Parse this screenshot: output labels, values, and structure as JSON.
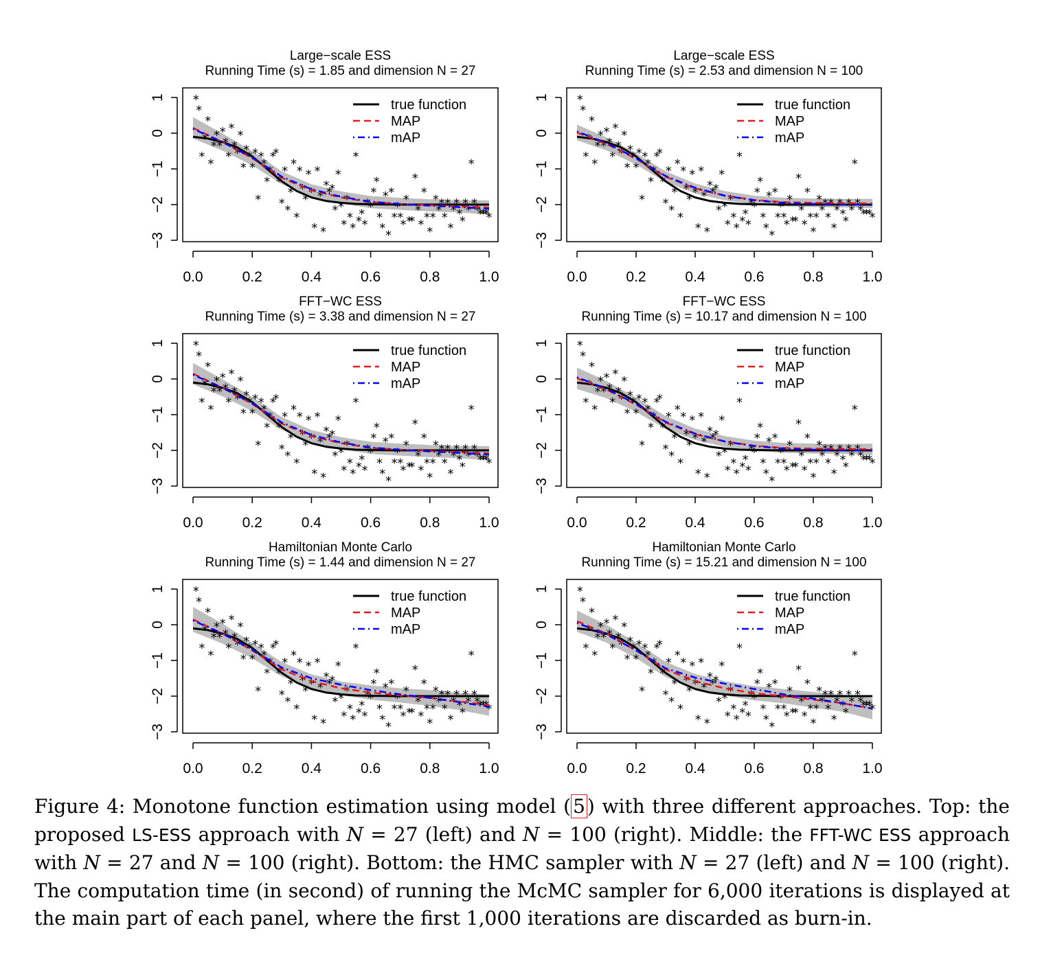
{
  "legend": {
    "true_function": "true function",
    "map": "MAP",
    "mAP": "mAP"
  },
  "colors": {
    "true_function": "#000000",
    "map": "#e41a1c",
    "mAP": "#0000ff",
    "band": "#bebebe"
  },
  "chart_data": [
    {
      "type": "line",
      "title_line1": "Large−scale ESS",
      "title_line2": "Running Time (s) =  1.85 and dimension N = 27",
      "xlim": [
        0,
        1
      ],
      "ylim": [
        -3,
        1
      ],
      "x_ticks": [
        "0.0",
        "0.2",
        "0.4",
        "0.6",
        "0.8",
        "1.0"
      ],
      "y_ticks": [
        "−3",
        "−2",
        "−1",
        "0",
        "1"
      ],
      "map_curve": {
        "x": [
          0,
          0.1,
          0.2,
          0.3,
          0.4,
          0.5,
          0.6,
          0.7,
          0.8,
          0.9,
          1.0
        ],
        "y": [
          0.15,
          -0.25,
          -0.7,
          -1.25,
          -1.6,
          -1.8,
          -1.93,
          -1.98,
          -2.02,
          -2.05,
          -2.08
        ]
      },
      "mAP_curve": {
        "x": [
          0,
          0.1,
          0.2,
          0.3,
          0.4,
          0.5,
          0.6,
          0.7,
          0.8,
          0.9,
          1.0
        ],
        "y": [
          0.12,
          -0.25,
          -0.68,
          -1.22,
          -1.57,
          -1.78,
          -1.92,
          -1.98,
          -2.03,
          -2.07,
          -2.12
        ]
      },
      "band_halfwidth": [
        0.3,
        0.24,
        0.2,
        0.18,
        0.17,
        0.17,
        0.17,
        0.17,
        0.17,
        0.17,
        0.2
      ]
    },
    {
      "type": "line",
      "title_line1": "Large−scale ESS",
      "title_line2": "Running Time (s) =  2.53 and dimension N = 100",
      "xlim": [
        0,
        1
      ],
      "ylim": [
        -3,
        1
      ],
      "x_ticks": [
        "0.0",
        "0.2",
        "0.4",
        "0.6",
        "0.8",
        "1.0"
      ],
      "y_ticks": [
        "−3",
        "−2",
        "−1",
        "0",
        "1"
      ],
      "map_curve": {
        "x": [
          0,
          0.1,
          0.2,
          0.3,
          0.4,
          0.5,
          0.6,
          0.7,
          0.8,
          0.9,
          1.0
        ],
        "y": [
          0.02,
          -0.3,
          -0.72,
          -1.22,
          -1.55,
          -1.75,
          -1.87,
          -1.93,
          -1.95,
          -1.96,
          -1.97
        ]
      },
      "mAP_curve": {
        "x": [
          0,
          0.1,
          0.2,
          0.3,
          0.4,
          0.5,
          0.6,
          0.7,
          0.8,
          0.9,
          1.0
        ],
        "y": [
          0.05,
          -0.28,
          -0.7,
          -1.2,
          -1.53,
          -1.75,
          -1.88,
          -1.95,
          -1.98,
          -2.0,
          -2.01
        ]
      },
      "band_halfwidth": [
        0.22,
        0.18,
        0.16,
        0.15,
        0.14,
        0.13,
        0.12,
        0.12,
        0.12,
        0.12,
        0.13
      ]
    },
    {
      "type": "line",
      "title_line1": "FFT−WC ESS",
      "title_line2": "Running Time (s) =  3.38 and dimension N =  27",
      "xlim": [
        0,
        1
      ],
      "ylim": [
        -3,
        1
      ],
      "x_ticks": [
        "0.0",
        "0.2",
        "0.4",
        "0.6",
        "0.8",
        "1.0"
      ],
      "y_ticks": [
        "−3",
        "−2",
        "−1",
        "0",
        "1"
      ],
      "map_curve": {
        "x": [
          0,
          0.1,
          0.2,
          0.3,
          0.4,
          0.5,
          0.6,
          0.7,
          0.8,
          0.9,
          1.0
        ],
        "y": [
          0.15,
          -0.25,
          -0.7,
          -1.25,
          -1.6,
          -1.8,
          -1.93,
          -1.98,
          -2.02,
          -2.05,
          -2.08
        ]
      },
      "mAP_curve": {
        "x": [
          0,
          0.1,
          0.2,
          0.3,
          0.4,
          0.5,
          0.6,
          0.7,
          0.8,
          0.9,
          1.0
        ],
        "y": [
          0.12,
          -0.25,
          -0.68,
          -1.22,
          -1.57,
          -1.78,
          -1.92,
          -1.98,
          -2.03,
          -2.07,
          -2.12
        ]
      },
      "band_halfwidth": [
        0.3,
        0.24,
        0.2,
        0.18,
        0.17,
        0.17,
        0.17,
        0.17,
        0.17,
        0.17,
        0.2
      ]
    },
    {
      "type": "line",
      "title_line1": "FFT−WC ESS",
      "title_line2": "Running Time (s) =  10.17 and dimension N =  100",
      "xlim": [
        0,
        1
      ],
      "ylim": [
        -3,
        1
      ],
      "x_ticks": [
        "0.0",
        "0.2",
        "0.4",
        "0.6",
        "0.8",
        "1.0"
      ],
      "y_ticks": [
        "−3",
        "−2",
        "−1",
        "0",
        "1"
      ],
      "map_curve": {
        "x": [
          0,
          0.1,
          0.2,
          0.3,
          0.4,
          0.5,
          0.6,
          0.7,
          0.8,
          0.9,
          1.0
        ],
        "y": [
          0.02,
          -0.3,
          -0.72,
          -1.22,
          -1.55,
          -1.75,
          -1.87,
          -1.93,
          -1.95,
          -1.96,
          -1.97
        ]
      },
      "mAP_curve": {
        "x": [
          0,
          0.1,
          0.2,
          0.3,
          0.4,
          0.5,
          0.6,
          0.7,
          0.8,
          0.9,
          1.0
        ],
        "y": [
          0.05,
          -0.28,
          -0.7,
          -1.2,
          -1.53,
          -1.75,
          -1.88,
          -1.95,
          -1.98,
          -2.0,
          -2.01
        ]
      },
      "band_halfwidth": [
        0.3,
        0.24,
        0.2,
        0.18,
        0.16,
        0.15,
        0.14,
        0.14,
        0.14,
        0.14,
        0.16
      ]
    },
    {
      "type": "line",
      "title_line1": "Hamiltonian Monte Carlo",
      "title_line2": "Running Time (s) =  1.44 and dimension N =  27",
      "xlim": [
        0,
        1
      ],
      "ylim": [
        -3,
        1
      ],
      "x_ticks": [
        "0.0",
        "0.2",
        "0.4",
        "0.6",
        "0.8",
        "1.0"
      ],
      "y_ticks": [
        "−3",
        "−2",
        "−1",
        "0",
        "1"
      ],
      "map_curve": {
        "x": [
          0,
          0.1,
          0.2,
          0.3,
          0.4,
          0.5,
          0.6,
          0.7,
          0.8,
          0.9,
          1.0
        ],
        "y": [
          0.15,
          -0.25,
          -0.72,
          -1.25,
          -1.58,
          -1.78,
          -1.9,
          -1.98,
          -2.05,
          -2.15,
          -2.25
        ]
      },
      "mAP_curve": {
        "x": [
          0,
          0.1,
          0.2,
          0.3,
          0.4,
          0.5,
          0.6,
          0.7,
          0.8,
          0.9,
          1.0
        ],
        "y": [
          0.12,
          -0.25,
          -0.7,
          -1.2,
          -1.5,
          -1.68,
          -1.83,
          -1.95,
          -2.05,
          -2.17,
          -2.3
        ]
      },
      "band_halfwidth": [
        0.35,
        0.28,
        0.22,
        0.2,
        0.19,
        0.19,
        0.2,
        0.2,
        0.22,
        0.24,
        0.3
      ]
    },
    {
      "type": "line",
      "title_line1": "Hamiltonian Monte Carlo",
      "title_line2": "Running Time (s) =  15.21 and dimension N =  100",
      "xlim": [
        0,
        1
      ],
      "ylim": [
        -3,
        1
      ],
      "x_ticks": [
        "0.0",
        "0.2",
        "0.4",
        "0.6",
        "0.8",
        "1.0"
      ],
      "y_ticks": [
        "−3",
        "−2",
        "−1",
        "0",
        "1"
      ],
      "map_curve": {
        "x": [
          0,
          0.1,
          0.2,
          0.3,
          0.4,
          0.5,
          0.6,
          0.7,
          0.8,
          0.9,
          1.0
        ],
        "y": [
          0.1,
          -0.25,
          -0.72,
          -1.25,
          -1.58,
          -1.78,
          -1.92,
          -2.0,
          -2.1,
          -2.2,
          -2.35
        ]
      },
      "mAP_curve": {
        "x": [
          0,
          0.1,
          0.2,
          0.3,
          0.4,
          0.5,
          0.6,
          0.7,
          0.8,
          0.9,
          1.0
        ],
        "y": [
          0.05,
          -0.27,
          -0.72,
          -1.22,
          -1.48,
          -1.65,
          -1.8,
          -1.95,
          -2.07,
          -2.2,
          -2.35
        ]
      },
      "band_halfwidth": [
        0.3,
        0.25,
        0.22,
        0.21,
        0.2,
        0.2,
        0.2,
        0.2,
        0.22,
        0.24,
        0.3
      ]
    }
  ],
  "true_function": {
    "x": [
      0,
      0.05,
      0.1,
      0.15,
      0.2,
      0.25,
      0.3,
      0.35,
      0.4,
      0.45,
      0.5,
      0.55,
      0.6,
      0.7,
      0.8,
      0.9,
      1.0
    ],
    "y": [
      -0.1,
      -0.15,
      -0.25,
      -0.4,
      -0.65,
      -1.0,
      -1.35,
      -1.62,
      -1.8,
      -1.9,
      -1.95,
      -1.98,
      -1.99,
      -2.0,
      -2.0,
      -2.0,
      -2.0
    ]
  },
  "observations": {
    "x": [
      0.01,
      0.02,
      0.03,
      0.04,
      0.05,
      0.06,
      0.07,
      0.08,
      0.09,
      0.1,
      0.11,
      0.12,
      0.13,
      0.14,
      0.15,
      0.16,
      0.17,
      0.18,
      0.19,
      0.2,
      0.21,
      0.22,
      0.23,
      0.24,
      0.25,
      0.26,
      0.27,
      0.28,
      0.29,
      0.3,
      0.31,
      0.32,
      0.33,
      0.34,
      0.35,
      0.36,
      0.37,
      0.38,
      0.39,
      0.4,
      0.41,
      0.42,
      0.43,
      0.44,
      0.45,
      0.46,
      0.47,
      0.48,
      0.49,
      0.5,
      0.51,
      0.52,
      0.53,
      0.54,
      0.55,
      0.56,
      0.57,
      0.58,
      0.59,
      0.6,
      0.61,
      0.62,
      0.63,
      0.64,
      0.65,
      0.66,
      0.67,
      0.68,
      0.69,
      0.7,
      0.71,
      0.72,
      0.73,
      0.74,
      0.75,
      0.76,
      0.77,
      0.78,
      0.79,
      0.8,
      0.81,
      0.82,
      0.83,
      0.84,
      0.85,
      0.86,
      0.87,
      0.88,
      0.89,
      0.9,
      0.91,
      0.92,
      0.93,
      0.94,
      0.95,
      0.96,
      0.97,
      0.98,
      0.99,
      1.0
    ],
    "y": [
      1.0,
      0.7,
      -0.6,
      -0.1,
      0.4,
      -0.8,
      -0.3,
      0.0,
      -0.3,
      0.1,
      -0.2,
      -0.6,
      0.2,
      -0.3,
      -0.5,
      0.0,
      -0.9,
      -0.4,
      -0.6,
      -0.9,
      -0.5,
      -1.8,
      -0.6,
      -0.8,
      -1.3,
      -1.0,
      -0.6,
      -0.5,
      -1.3,
      -1.9,
      -1.0,
      -2.1,
      -1.6,
      -0.8,
      -2.3,
      -1.0,
      -1.5,
      -1.8,
      -1.1,
      -1.6,
      -2.6,
      -1.0,
      -1.7,
      -2.7,
      -1.4,
      -1.6,
      -1.5,
      -2.1,
      -1.1,
      -2.0,
      -2.5,
      -1.8,
      -2.3,
      -2.6,
      -0.6,
      -2.4,
      -2.2,
      -2.5,
      -1.9,
      -2.0,
      -1.6,
      -1.3,
      -2.3,
      -2.6,
      -1.7,
      -2.8,
      -1.6,
      -2.3,
      -2.0,
      -2.3,
      -2.5,
      -1.8,
      -2.4,
      -2.4,
      -1.2,
      -2.1,
      -2.5,
      -1.6,
      -2.3,
      -2.7,
      -2.3,
      -1.8,
      -2.1,
      -1.9,
      -2.3,
      -1.9,
      -2.6,
      -2.1,
      -1.9,
      -2.2,
      -2.4,
      -1.9,
      -2.1,
      -0.8,
      -1.9,
      -2.1,
      -2.2,
      -2.2,
      -2.2,
      -2.3
    ]
  },
  "caption": {
    "prefix": "Figure 4: Monotone function estimation using model (",
    "ref": "5",
    "p1": ") with three different approaches. Top: the proposed ",
    "ls_ess": "LS-ESS",
    "p2": " approach with ",
    "n": "N",
    "eq27": " = 27 (left) and ",
    "eq100": " = 100 (right). Middle: the ",
    "fft": "FFT-WC ESS",
    "p3": " approach with ",
    "eq27b": " = 27 and ",
    "eq100b": " = 100 (right). Bottom: the HMC sampler with ",
    "eq27c": " = 27 (left) and ",
    "eq100c": " = 100 (right). The computation time (in second) of running the McMC sampler for 6,000 iterations is displayed at the main part of each panel, where the first 1,000 iterations are discarded as burn-in."
  }
}
